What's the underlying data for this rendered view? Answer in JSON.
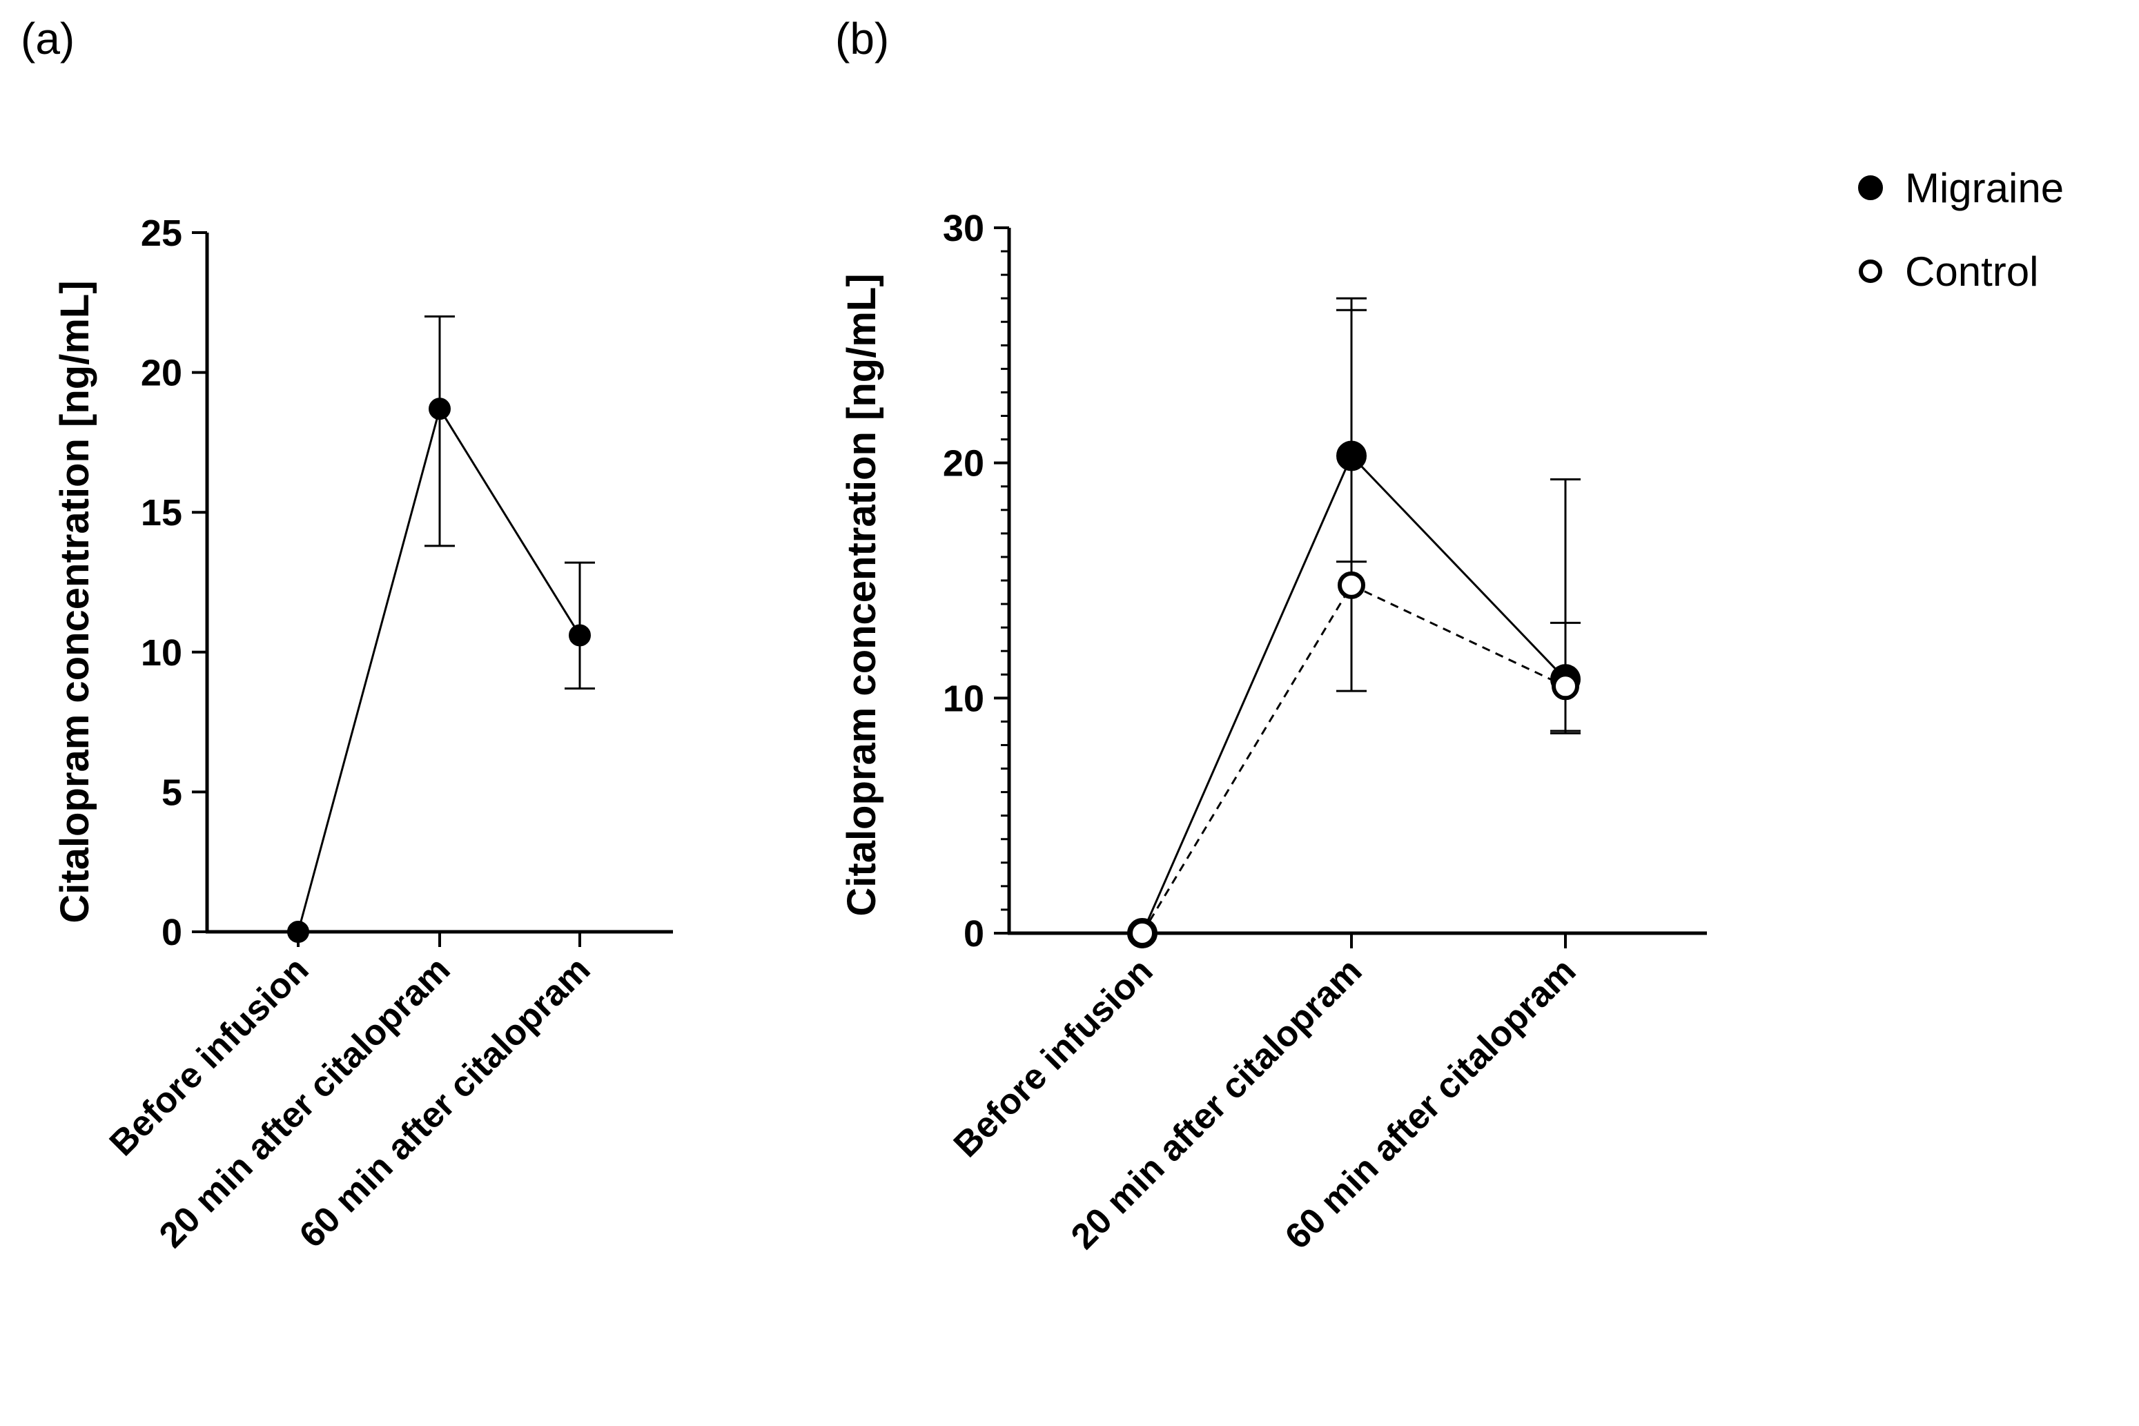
{
  "chart_data": [
    {
      "panel": "(a)",
      "type": "line",
      "categories": [
        "Before infusion",
        "20 min after citalopram",
        "60 min after citalopram"
      ],
      "ylabel": "Citalopram concentration [ng/mL]",
      "ylim": [
        0,
        25
      ],
      "yticks": [
        0,
        5,
        10,
        15,
        20,
        25
      ],
      "minor_ticks": false,
      "series": [
        {
          "name": "Migraine",
          "marker": "filled-circle",
          "line": "solid",
          "values": [
            0,
            18.7,
            10.6
          ],
          "err_low": [
            null,
            13.8,
            8.7
          ],
          "err_high": [
            null,
            22.0,
            13.2
          ]
        }
      ]
    },
    {
      "panel": "(b)",
      "type": "line",
      "categories": [
        "Before infusion",
        "20 min after citalopram",
        "60 min after citalopram"
      ],
      "ylabel": "Citalopram concentration [ng/mL]",
      "ylim": [
        0,
        30
      ],
      "yticks": [
        0,
        10,
        20,
        30
      ],
      "minor_ticks": true,
      "legend_position": "top-right",
      "series": [
        {
          "name": "Migraine",
          "marker": "filled-circle",
          "line": "solid",
          "values": [
            0,
            20.3,
            10.8
          ],
          "err_low": [
            null,
            15.8,
            8.6
          ],
          "err_high": [
            null,
            27.0,
            19.3
          ]
        },
        {
          "name": "Control",
          "marker": "open-circle",
          "line": "dashed",
          "values": [
            0,
            14.8,
            10.5
          ],
          "err_low": [
            null,
            10.3,
            8.5
          ],
          "err_high": [
            null,
            26.5,
            13.2
          ]
        }
      ]
    }
  ],
  "legend": [
    {
      "label": "Migraine",
      "marker": "filled-circle"
    },
    {
      "label": "Control",
      "marker": "open-circle"
    }
  ]
}
